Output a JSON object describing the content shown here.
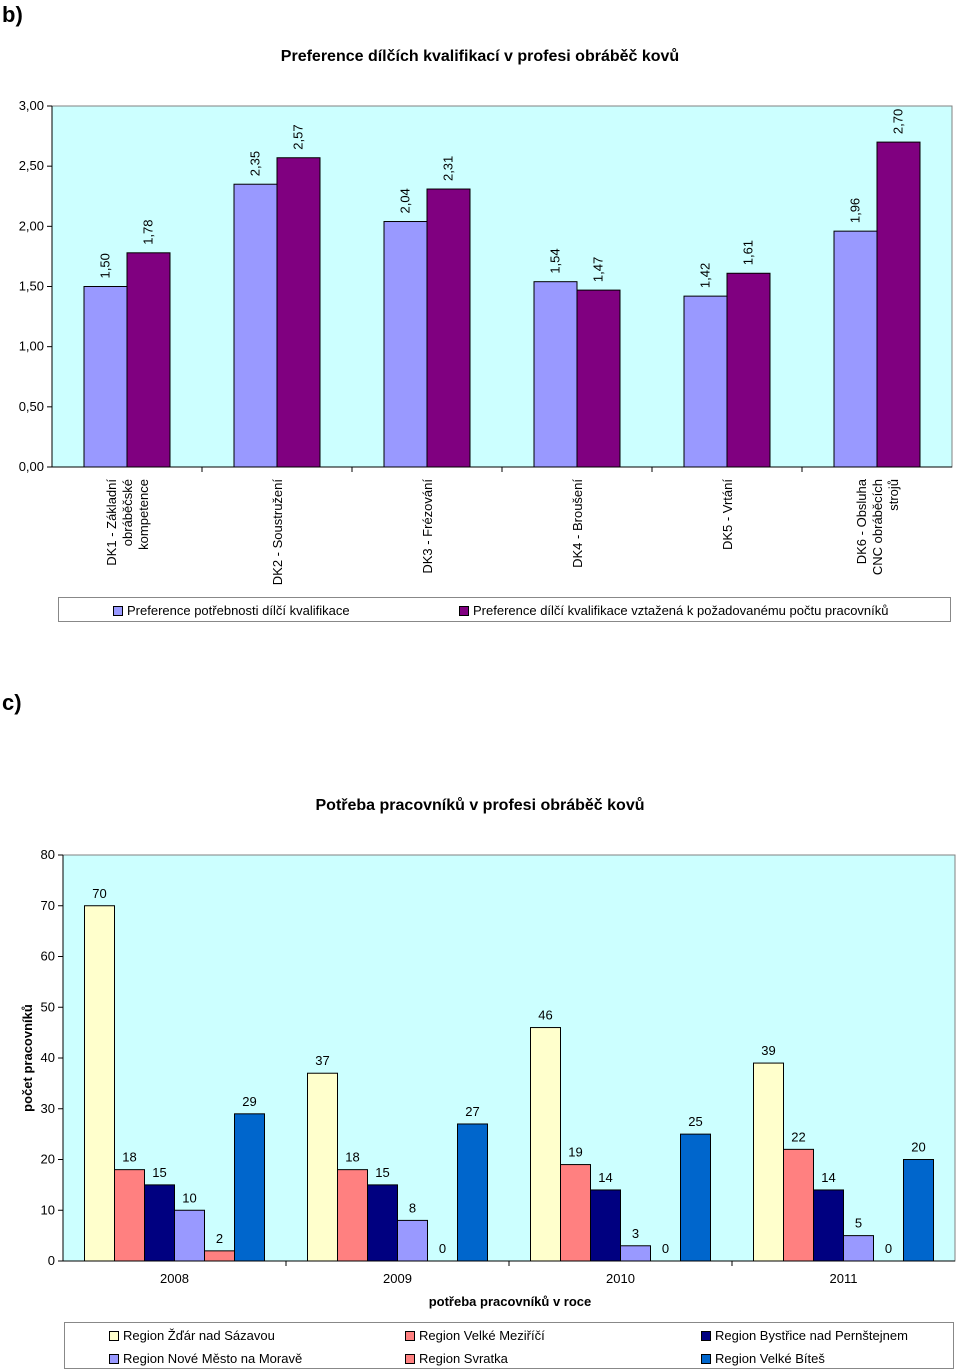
{
  "labels": {
    "section_b": "b)",
    "section_c": "c)"
  },
  "chart_data": [
    {
      "type": "bar",
      "title": "Preference dílčích kvalifikací v profesi obráběč kovů",
      "categories": [
        [
          "DK1 - Základní",
          "obráběčské",
          "kompetence"
        ],
        [
          "DK2 - Soustružení"
        ],
        [
          "DK3 - Frézování"
        ],
        [
          "DK4 - Broušení"
        ],
        [
          "DK5 - Vrtání"
        ],
        [
          "DK6 - Obsluha",
          "CNC obráběcích",
          "strojů"
        ]
      ],
      "series": [
        {
          "name": "Preference potřebnosti dílčí kvalifikace",
          "color": "#9999ff",
          "values": [
            1.5,
            2.35,
            2.04,
            1.54,
            1.42,
            1.96
          ],
          "labels": [
            "1,50",
            "2,35",
            "2,04",
            "1,54",
            "1,42",
            "1,96"
          ]
        },
        {
          "name": "Preference dílčí kvalifikace vztažená k požadovanému počtu pracovníků",
          "color": "#800080",
          "values": [
            1.78,
            2.57,
            2.31,
            1.47,
            1.61,
            2.7
          ],
          "labels": [
            "1,78",
            "2,57",
            "2,31",
            "1,47",
            "1,61",
            "2,70"
          ]
        }
      ],
      "ylim": [
        0,
        3
      ],
      "yticks": [
        0,
        0.5,
        1,
        1.5,
        2,
        2.5,
        3
      ],
      "ytick_labels": [
        "0,00",
        "0,50",
        "1,00",
        "1,50",
        "2,00",
        "2,50",
        "3,00"
      ],
      "xlabel": "",
      "ylabel": "",
      "plot_background": "#ccffff",
      "legend_position": "bottom"
    },
    {
      "type": "bar",
      "title": "Potřeba pracovníků v profesi obráběč kovů",
      "categories": [
        "2008",
        "2009",
        "2010",
        "2011"
      ],
      "series": [
        {
          "name": "Region Žďár nad Sázavou",
          "color": "#ffffcc",
          "values": [
            70,
            37,
            46,
            39
          ]
        },
        {
          "name": "Region Velké Meziříčí",
          "color": "#ff8080",
          "values": [
            18,
            18,
            19,
            22
          ]
        },
        {
          "name": "Region Bystřice nad Pernštejnem",
          "color": "#000080",
          "values": [
            15,
            15,
            14,
            14
          ]
        },
        {
          "name": "Region Nové Město na Moravě",
          "color": "#9999ff",
          "values": [
            10,
            8,
            3,
            5
          ]
        },
        {
          "name": "Region Svratka",
          "color": "#ff8080",
          "values": [
            2,
            0,
            0,
            0
          ]
        },
        {
          "name": "Region Velké Bíteš",
          "color": "#0066cc",
          "values": [
            29,
            27,
            25,
            20
          ]
        }
      ],
      "ylim": [
        0,
        80
      ],
      "yticks": [
        0,
        10,
        20,
        30,
        40,
        50,
        60,
        70,
        80
      ],
      "xlabel": "potřeba pracovníků v roce",
      "ylabel": "počet pracovníků",
      "plot_background": "#ccffff",
      "legend_position": "bottom"
    }
  ]
}
